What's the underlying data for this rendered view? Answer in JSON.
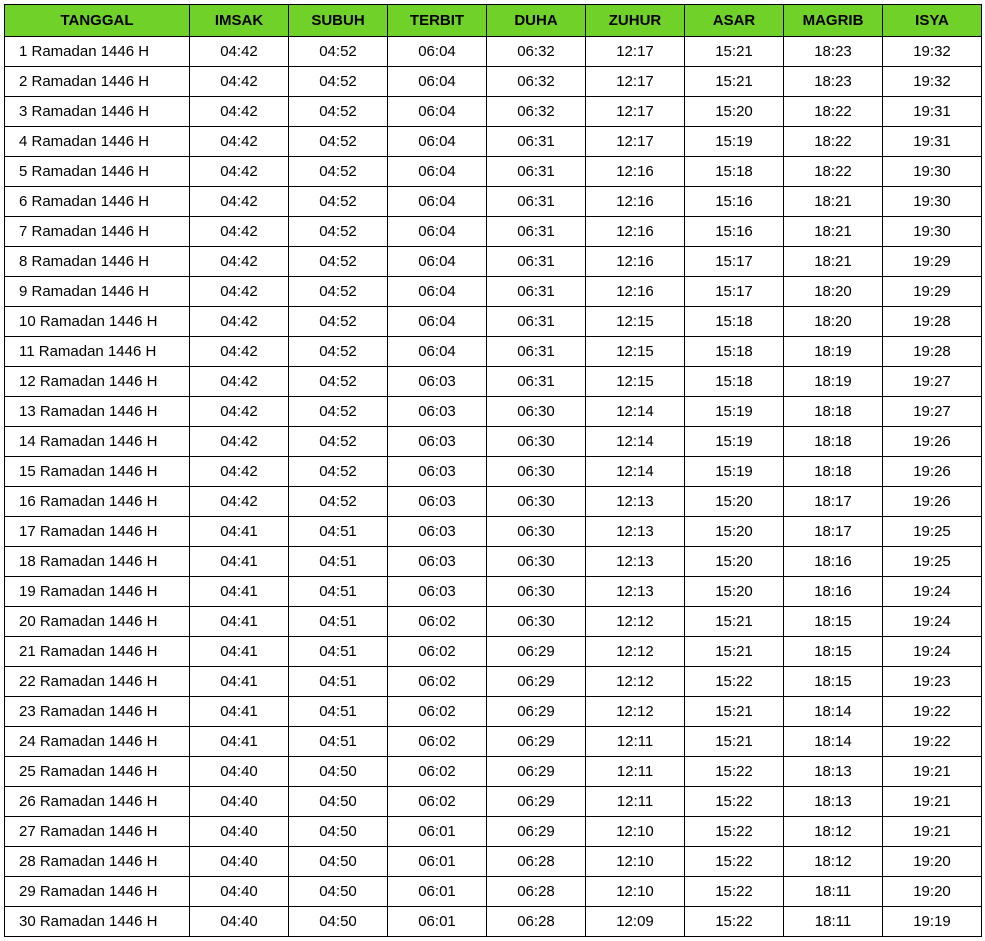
{
  "table": {
    "header_bg": "#70d128",
    "border_color": "#000000",
    "font_family": "Arial",
    "header_fontsize": 15,
    "cell_fontsize": 15,
    "columns": [
      "TANGGAL",
      "IMSAK",
      "SUBUH",
      "TERBIT",
      "DUHA",
      "ZUHUR",
      "ASAR",
      "MAGRIB",
      "ISYA"
    ],
    "rows": [
      [
        "1 Ramadan 1446 H",
        "04:42",
        "04:52",
        "06:04",
        "06:32",
        "12:17",
        "15:21",
        "18:23",
        "19:32"
      ],
      [
        "2 Ramadan 1446 H",
        "04:42",
        "04:52",
        "06:04",
        "06:32",
        "12:17",
        "15:21",
        "18:23",
        "19:32"
      ],
      [
        "3 Ramadan 1446 H",
        "04:42",
        "04:52",
        "06:04",
        "06:32",
        "12:17",
        "15:20",
        "18:22",
        "19:31"
      ],
      [
        "4 Ramadan 1446 H",
        "04:42",
        "04:52",
        "06:04",
        "06:31",
        "12:17",
        "15:19",
        "18:22",
        "19:31"
      ],
      [
        "5 Ramadan 1446 H",
        "04:42",
        "04:52",
        "06:04",
        "06:31",
        "12:16",
        "15:18",
        "18:22",
        "19:30"
      ],
      [
        "6 Ramadan 1446 H",
        "04:42",
        "04:52",
        "06:04",
        "06:31",
        "12:16",
        "15:16",
        "18:21",
        "19:30"
      ],
      [
        "7 Ramadan 1446 H",
        "04:42",
        "04:52",
        "06:04",
        "06:31",
        "12:16",
        "15:16",
        "18:21",
        "19:30"
      ],
      [
        "8 Ramadan 1446 H",
        "04:42",
        "04:52",
        "06:04",
        "06:31",
        "12:16",
        "15:17",
        "18:21",
        "19:29"
      ],
      [
        "9 Ramadan 1446 H",
        "04:42",
        "04:52",
        "06:04",
        "06:31",
        "12:16",
        "15:17",
        "18:20",
        "19:29"
      ],
      [
        "10 Ramadan 1446 H",
        "04:42",
        "04:52",
        "06:04",
        "06:31",
        "12:15",
        "15:18",
        "18:20",
        "19:28"
      ],
      [
        "11 Ramadan 1446 H",
        "04:42",
        "04:52",
        "06:04",
        "06:31",
        "12:15",
        "15:18",
        "18:19",
        "19:28"
      ],
      [
        "12 Ramadan 1446 H",
        "04:42",
        "04:52",
        "06:03",
        "06:31",
        "12:15",
        "15:18",
        "18:19",
        "19:27"
      ],
      [
        "13 Ramadan 1446 H",
        "04:42",
        "04:52",
        "06:03",
        "06:30",
        "12:14",
        "15:19",
        "18:18",
        "19:27"
      ],
      [
        "14 Ramadan 1446 H",
        "04:42",
        "04:52",
        "06:03",
        "06:30",
        "12:14",
        "15:19",
        "18:18",
        "19:26"
      ],
      [
        "15 Ramadan 1446 H",
        "04:42",
        "04:52",
        "06:03",
        "06:30",
        "12:14",
        "15:19",
        "18:18",
        "19:26"
      ],
      [
        "16 Ramadan 1446 H",
        "04:42",
        "04:52",
        "06:03",
        "06:30",
        "12:13",
        "15:20",
        "18:17",
        "19:26"
      ],
      [
        "17 Ramadan 1446 H",
        "04:41",
        "04:51",
        "06:03",
        "06:30",
        "12:13",
        "15:20",
        "18:17",
        "19:25"
      ],
      [
        "18 Ramadan 1446 H",
        "04:41",
        "04:51",
        "06:03",
        "06:30",
        "12:13",
        "15:20",
        "18:16",
        "19:25"
      ],
      [
        "19 Ramadan 1446 H",
        "04:41",
        "04:51",
        "06:03",
        "06:30",
        "12:13",
        "15:20",
        "18:16",
        "19:24"
      ],
      [
        "20 Ramadan 1446 H",
        "04:41",
        "04:51",
        "06:02",
        "06:30",
        "12:12",
        "15:21",
        "18:15",
        "19:24"
      ],
      [
        "21 Ramadan 1446 H",
        "04:41",
        "04:51",
        "06:02",
        "06:29",
        "12:12",
        "15:21",
        "18:15",
        "19:24"
      ],
      [
        "22 Ramadan 1446 H",
        "04:41",
        "04:51",
        "06:02",
        "06:29",
        "12:12",
        "15:22",
        "18:15",
        "19:23"
      ],
      [
        "23 Ramadan 1446 H",
        "04:41",
        "04:51",
        "06:02",
        "06:29",
        "12:12",
        "15:21",
        "18:14",
        "19:22"
      ],
      [
        "24 Ramadan 1446 H",
        "04:41",
        "04:51",
        "06:02",
        "06:29",
        "12:11",
        "15:21",
        "18:14",
        "19:22"
      ],
      [
        "25 Ramadan 1446 H",
        "04:40",
        "04:50",
        "06:02",
        "06:29",
        "12:11",
        "15:22",
        "18:13",
        "19:21"
      ],
      [
        "26 Ramadan 1446 H",
        "04:40",
        "04:50",
        "06:02",
        "06:29",
        "12:11",
        "15:22",
        "18:13",
        "19:21"
      ],
      [
        "27 Ramadan 1446 H",
        "04:40",
        "04:50",
        "06:01",
        "06:29",
        "12:10",
        "15:22",
        "18:12",
        "19:21"
      ],
      [
        "28 Ramadan 1446 H",
        "04:40",
        "04:50",
        "06:01",
        "06:28",
        "12:10",
        "15:22",
        "18:12",
        "19:20"
      ],
      [
        "29 Ramadan 1446 H",
        "04:40",
        "04:50",
        "06:01",
        "06:28",
        "12:10",
        "15:22",
        "18:11",
        "19:20"
      ],
      [
        "30 Ramadan 1446 H",
        "04:40",
        "04:50",
        "06:01",
        "06:28",
        "12:09",
        "15:22",
        "18:11",
        "19:19"
      ]
    ]
  }
}
